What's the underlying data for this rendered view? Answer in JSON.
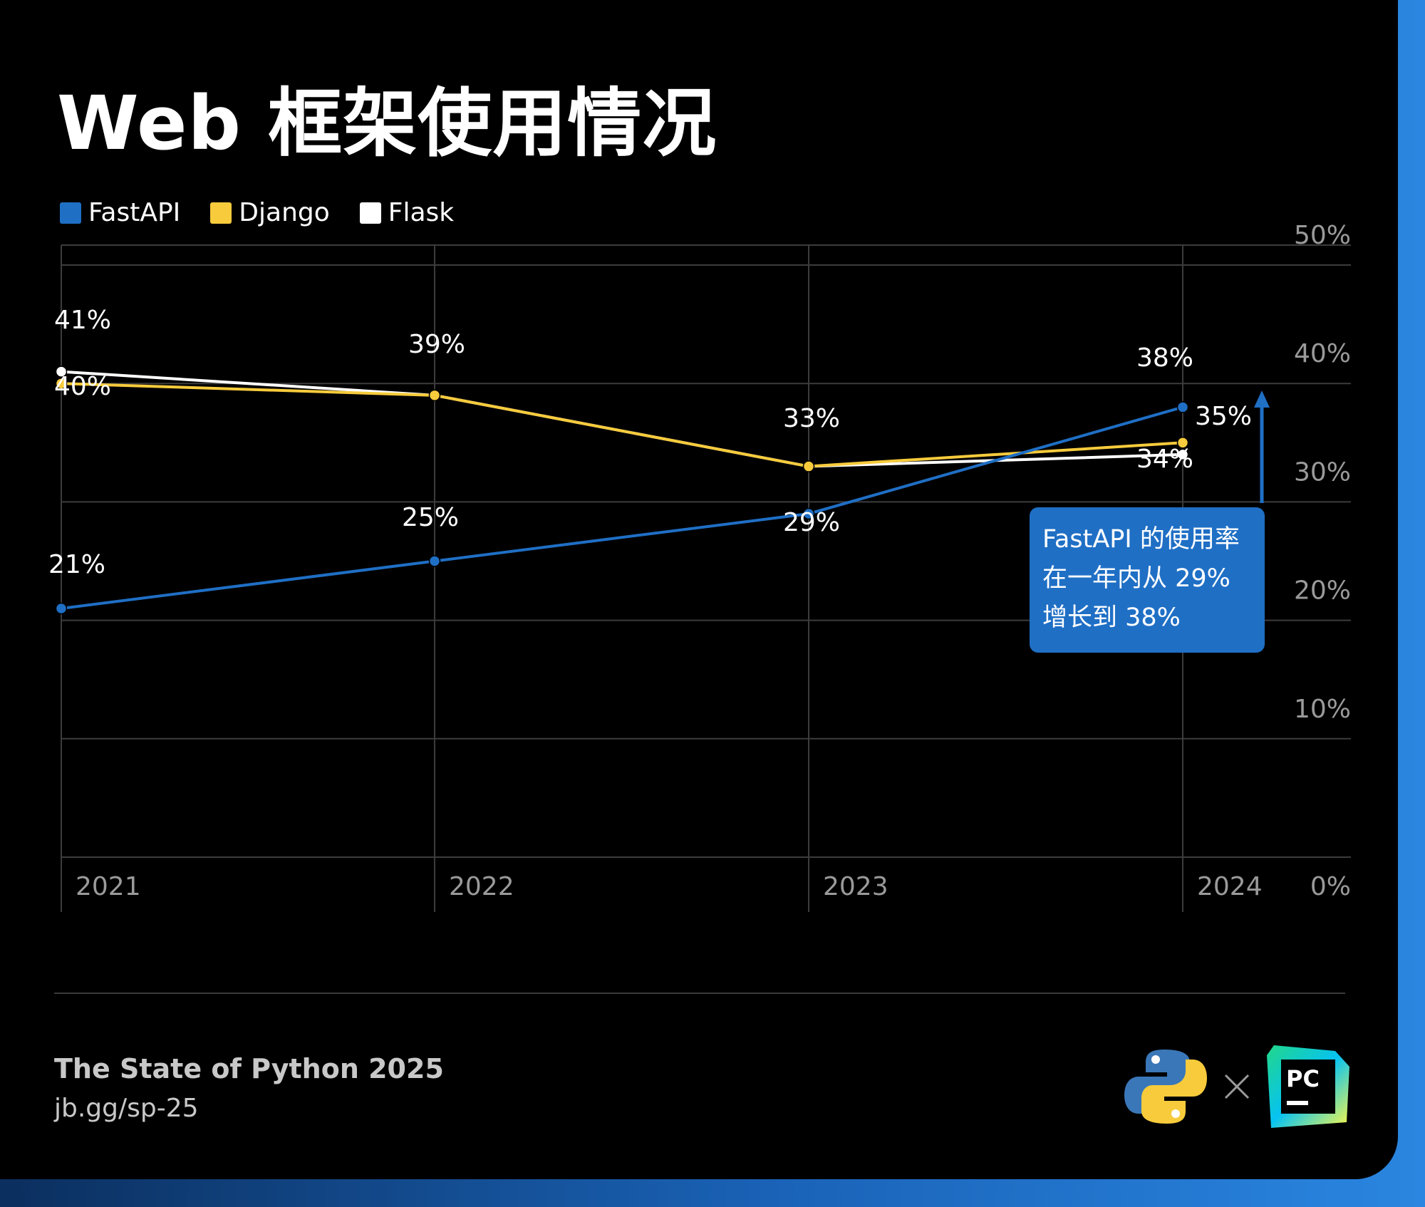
{
  "title": "Web 框架使用情况",
  "footer": {
    "report_title": "The State of Python 2025",
    "link": "jb.gg/sp-25"
  },
  "colors": {
    "fastapi": "#1f6fc5",
    "django": "#f7cb3c",
    "flask": "#ffffff",
    "background": "#000000",
    "accent_strip": "#1a63b8"
  },
  "icons": [
    "python-logo-icon",
    "times-icon",
    "pycharm-logo-icon"
  ],
  "chart_data": {
    "type": "line",
    "x": [
      "2021",
      "2022",
      "2023",
      "2024"
    ],
    "ylim": [
      0,
      50
    ],
    "yticks": [
      "0%",
      "10%",
      "20%",
      "30%",
      "40%",
      "50%"
    ],
    "y_axis_position": "right",
    "grid": true,
    "legend": "top-left",
    "series": [
      {
        "name": "FastAPI",
        "values": [
          21,
          25,
          29,
          38
        ],
        "labels": [
          "21%",
          "25%",
          "29%",
          "38%"
        ]
      },
      {
        "name": "Django",
        "values": [
          40,
          39,
          33,
          35
        ],
        "labels": [
          "40%",
          "39%",
          "33%",
          "35%"
        ]
      },
      {
        "name": "Flask",
        "values": [
          41,
          39,
          33,
          34
        ],
        "labels": [
          "41%",
          "",
          "",
          "34%"
        ]
      }
    ],
    "annotation": {
      "lines": [
        "FastAPI 的使用率",
        "在一年内从 29%",
        "增长到 38%"
      ]
    }
  }
}
